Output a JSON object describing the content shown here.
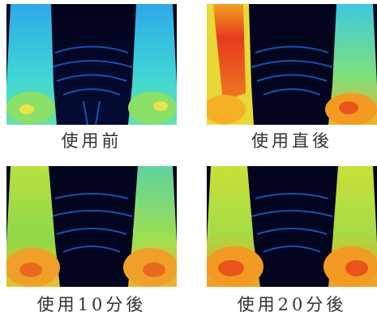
{
  "panels": [
    {
      "caption": "使用前"
    },
    {
      "caption": "使用直後"
    },
    {
      "caption": "使用10分後"
    },
    {
      "caption": "使用20分後"
    }
  ]
}
